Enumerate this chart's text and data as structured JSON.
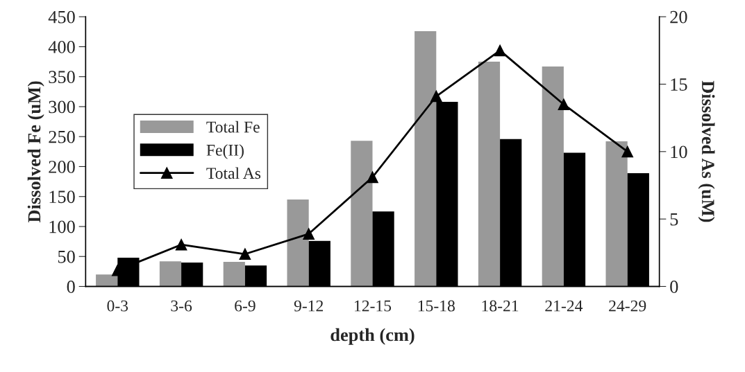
{
  "chart_data": {
    "type": "bar",
    "xlabel": "depth (cm)",
    "ylabel": "Dissolved Fe (uM)",
    "y2label": "Dissolved As (uM)",
    "categories": [
      "0-3",
      "3-6",
      "6-9",
      "9-12",
      "12-15",
      "15-18",
      "18-21",
      "21-24",
      "24-29"
    ],
    "series": [
      {
        "name": "Total Fe",
        "color": "#999999",
        "values": [
          20,
          42,
          41,
          145,
          243,
          426,
          375,
          367,
          242
        ]
      },
      {
        "name": "Fe(II)",
        "color": "#000000",
        "values": [
          48,
          40,
          35,
          76,
          125,
          308,
          246,
          223,
          189
        ]
      },
      {
        "name": "Total As",
        "type": "line",
        "axis": "y2",
        "color": "#000000",
        "marker": "triangle",
        "values": [
          1.2,
          3.1,
          2.4,
          3.9,
          8.1,
          14.1,
          17.5,
          13.5,
          10.0
        ]
      }
    ],
    "ylim": [
      0,
      450
    ],
    "yticks": [
      0,
      50,
      100,
      150,
      200,
      250,
      300,
      350,
      400,
      450
    ],
    "y2lim": [
      0,
      20
    ],
    "y2ticks": [
      0,
      5,
      10,
      15,
      20
    ],
    "legend": "center left",
    "grid": false
  }
}
